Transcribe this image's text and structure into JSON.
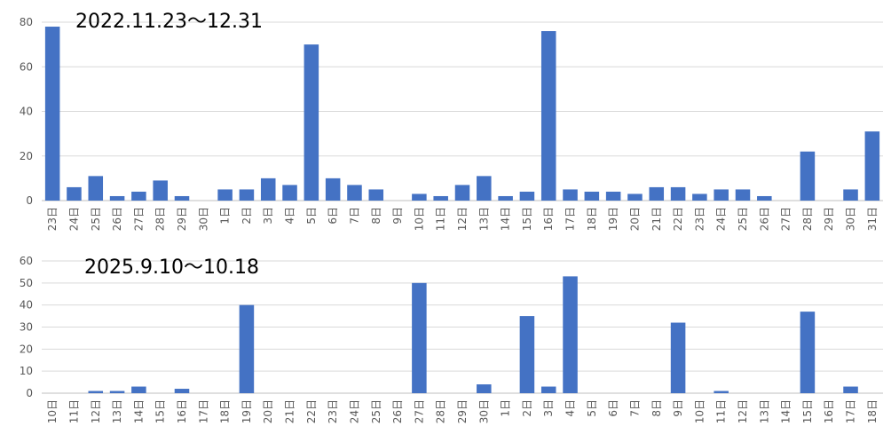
{
  "chart_data": [
    {
      "type": "bar",
      "title": "2022.11.23～12.31",
      "ylim": [
        0,
        80
      ],
      "yticks": [
        0,
        20,
        40,
        60,
        80
      ],
      "grid": true,
      "bar_color": "#4472C4",
      "categories": [
        "23日",
        "24日",
        "25日",
        "26日",
        "27日",
        "28日",
        "29日",
        "30日",
        "1日",
        "2日",
        "3日",
        "4日",
        "5日",
        "6日",
        "7日",
        "8日",
        "9日",
        "10日",
        "11日",
        "12日",
        "13日",
        "14日",
        "15日",
        "16日",
        "17日",
        "18日",
        "19日",
        "20日",
        "21日",
        "22日",
        "23日",
        "24日",
        "25日",
        "26日",
        "27日",
        "28日",
        "29日",
        "30日",
        "31日"
      ],
      "values": [
        78,
        6,
        11,
        2,
        4,
        9,
        2,
        0,
        5,
        5,
        10,
        7,
        70,
        10,
        7,
        5,
        0,
        3,
        2,
        7,
        11,
        2,
        4,
        76,
        5,
        4,
        4,
        3,
        6,
        6,
        3,
        5,
        5,
        2,
        0,
        22,
        0,
        5,
        31
      ]
    },
    {
      "type": "bar",
      "title": "2025.9.10～10.18",
      "ylim": [
        0,
        60
      ],
      "yticks": [
        0,
        10,
        20,
        30,
        40,
        50,
        60
      ],
      "grid": true,
      "bar_color": "#4472C4",
      "categories": [
        "10日",
        "11日",
        "12日",
        "13日",
        "14日",
        "15日",
        "16日",
        "17日",
        "18日",
        "19日",
        "20日",
        "21日",
        "22日",
        "23日",
        "24日",
        "25日",
        "26日",
        "27日",
        "28日",
        "29日",
        "30日",
        "1日",
        "2日",
        "3日",
        "4日",
        "5日",
        "6日",
        "7日",
        "8日",
        "9日",
        "10日",
        "11日",
        "12日",
        "13日",
        "14日",
        "15日",
        "16日",
        "17日",
        "18日"
      ],
      "values": [
        0,
        0,
        1,
        1,
        3,
        0,
        2,
        0,
        0,
        40,
        0,
        0,
        0,
        0,
        0,
        0,
        0,
        50,
        0,
        0,
        4,
        0,
        35,
        3,
        53,
        0,
        0,
        0,
        0,
        32,
        0,
        1,
        0,
        0,
        0,
        37,
        0,
        3,
        0
      ]
    }
  ]
}
